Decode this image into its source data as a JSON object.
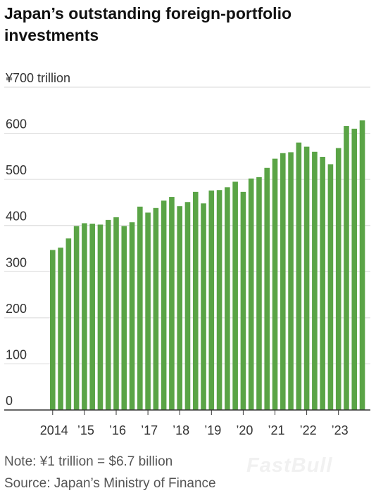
{
  "title": "Japan’s outstanding foreign-portfolio investments",
  "note": "Note: ¥1 trillion = $6.7 billion",
  "source": "Source: Japan’s Ministry of Finance",
  "watermark": "FastBull",
  "colors": {
    "bar": "#5aa446",
    "grid": "#d9d9d9",
    "axis": "#333333",
    "tick_text": "#333333"
  },
  "chart_data": {
    "type": "bar",
    "frequency": "quarterly",
    "ylim": [
      0,
      700
    ],
    "y_unit_label": "¥700 trillion",
    "yticks": [
      0,
      100,
      200,
      300,
      400,
      500,
      600,
      700
    ],
    "ytick_labels": [
      "0",
      "100",
      "200",
      "300",
      "400",
      "500",
      "600",
      "¥700 trillion"
    ],
    "grid": true,
    "x_tick_labels": [
      "2014",
      "’15",
      "’16",
      "’17",
      "’18",
      "’19",
      "’20",
      "’21",
      "’22",
      "’23"
    ],
    "categories": [
      "2014 Q1",
      "2014 Q2",
      "2014 Q3",
      "2014 Q4",
      "2015 Q1",
      "2015 Q2",
      "2015 Q3",
      "2015 Q4",
      "2016 Q1",
      "2016 Q2",
      "2016 Q3",
      "2016 Q4",
      "2017 Q1",
      "2017 Q2",
      "2017 Q3",
      "2017 Q4",
      "2018 Q1",
      "2018 Q2",
      "2018 Q3",
      "2018 Q4",
      "2019 Q1",
      "2019 Q2",
      "2019 Q3",
      "2019 Q4",
      "2020 Q1",
      "2020 Q2",
      "2020 Q3",
      "2020 Q4",
      "2021 Q1",
      "2021 Q2",
      "2021 Q3",
      "2021 Q4",
      "2022 Q1",
      "2022 Q2",
      "2022 Q3",
      "2022 Q4",
      "2023 Q1",
      "2023 Q2",
      "2023 Q3",
      "2023 Q4"
    ],
    "values": [
      347,
      352,
      372,
      399,
      405,
      404,
      402,
      412,
      418,
      399,
      407,
      441,
      428,
      438,
      454,
      462,
      442,
      451,
      473,
      448,
      476,
      477,
      483,
      495,
      473,
      502,
      505,
      525,
      545,
      557,
      559,
      580,
      571,
      560,
      549,
      533,
      568,
      616,
      610,
      628
    ]
  }
}
